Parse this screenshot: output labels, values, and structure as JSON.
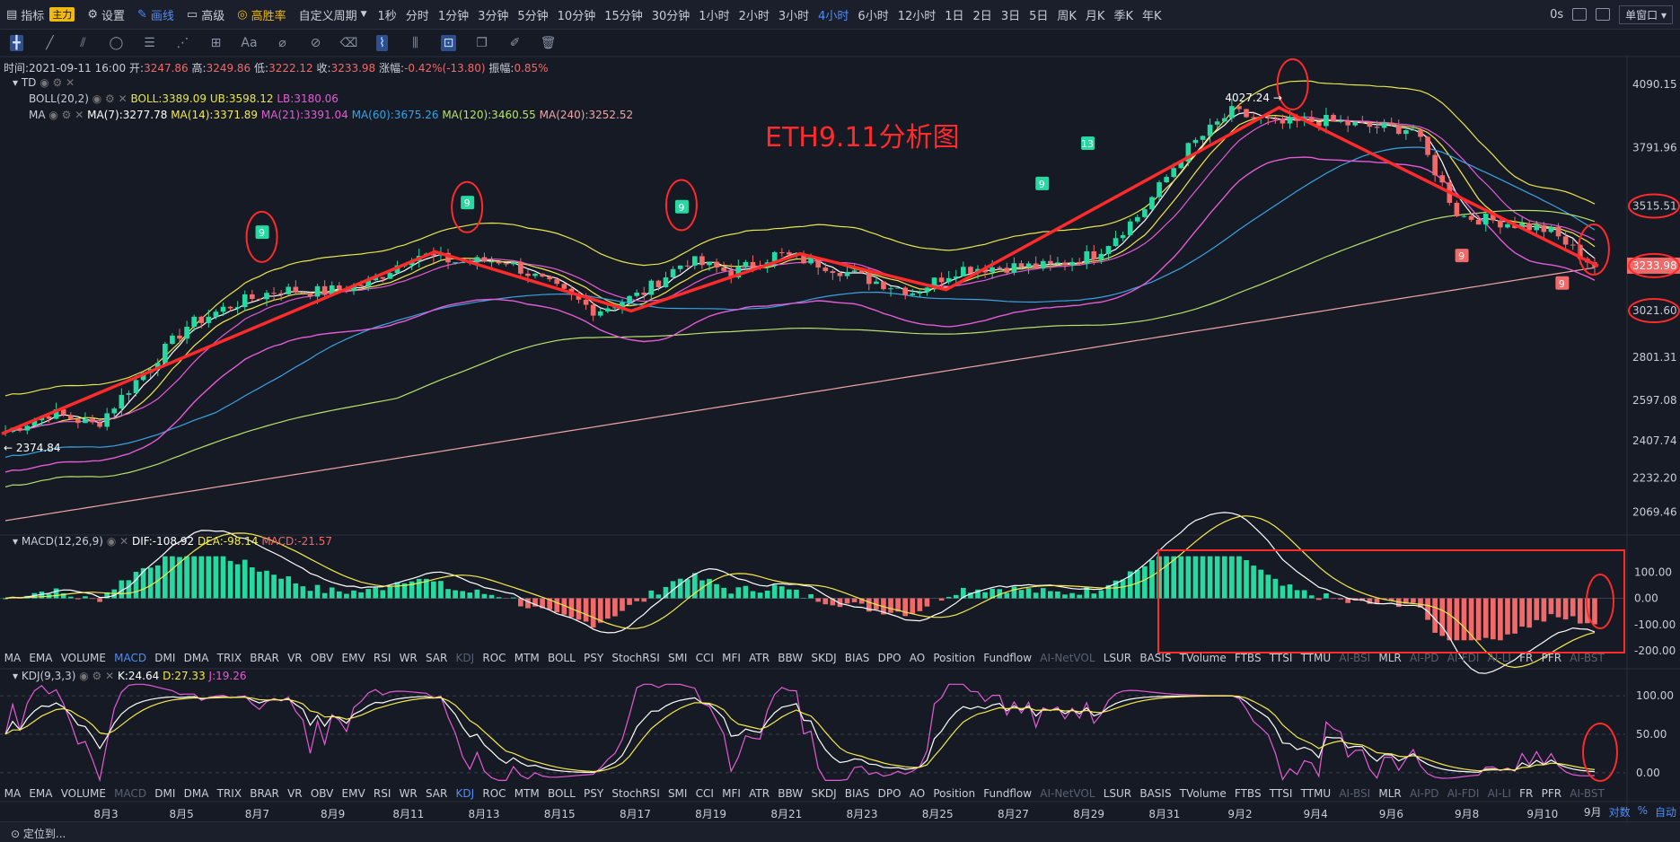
{
  "topbar": {
    "indicator_label": "指标",
    "main_badge": "主力",
    "settings_label": "设置",
    "draw_label": "画线",
    "advanced_label": "高级",
    "winrate_label": "高胜率",
    "custom_period_label": "自定义周期",
    "periods": [
      "1秒",
      "分时",
      "1分钟",
      "3分钟",
      "5分钟",
      "10分钟",
      "15分钟",
      "30分钟",
      "1小时",
      "2小时",
      "3小时",
      "4小时",
      "6小时",
      "12小时",
      "1日",
      "2日",
      "3日",
      "5日",
      "周K",
      "月K",
      "季K",
      "年K"
    ],
    "active_period": "4小时",
    "timer": "0s",
    "window_mode": "单窗口"
  },
  "toolbar": {
    "text_tool": "Aa"
  },
  "info_line": {
    "time": "时间:2021-09-11 16:00",
    "open_label": "开:",
    "open": "3247.86",
    "high_label": "高:",
    "high": "3249.86",
    "low_label": "低:",
    "low": "3222.12",
    "close_label": "收:",
    "close": "3233.98",
    "change_label": "涨幅:",
    "change": "-0.42%(-13.80)",
    "amp_label": "振幅:",
    "amp": "0.85%"
  },
  "legends": {
    "td": "TD",
    "boll_name": "BOLL(20,2)",
    "boll_mid": "BOLL:3389.09",
    "boll_ub": "UB:3598.12",
    "boll_lb": "LB:3180.06",
    "ma_name": "MA",
    "ma7": "MA(7):3277.78",
    "ma14": "MA(14):3371.89",
    "ma21": "MA(21):3391.04",
    "ma60": "MA(60):3675.26",
    "ma120": "MA(120):3460.55",
    "ma240": "MA(240):3252.52",
    "macd_name": "MACD(12,26,9)",
    "dif": "DIF:-108.92",
    "dea": "DEA:-98.14",
    "macd": "MACD:-21.57",
    "kdj_name": "KDJ(9,3,3)",
    "k": "K:24.64",
    "d": "D:27.33",
    "j": "J:19.26"
  },
  "annotation_title": "ETH9.11分析图",
  "indicator_tabs": [
    "MA",
    "EMA",
    "VOLUME",
    "MACD",
    "DMI",
    "DMA",
    "TRIX",
    "BRAR",
    "VR",
    "OBV",
    "EMV",
    "RSI",
    "WR",
    "SAR",
    "KDJ",
    "ROC",
    "MTM",
    "BOLL",
    "PSY",
    "StochRSI",
    "SMI",
    "CCI",
    "MFI",
    "ATR",
    "BBW",
    "SKDJ",
    "BIAS",
    "DPO",
    "AO",
    "Position",
    "Fundflow",
    "AI-NetVOL",
    "LSUR",
    "BASIS",
    "TVolume",
    "FTBS",
    "TTSI",
    "TTMU",
    "AI-BSI",
    "MLR",
    "AI-PD",
    "AI-FDI",
    "AI-LI",
    "FR",
    "PFR",
    "AI-BST"
  ],
  "indicator_tabs_dim": [
    "KDJ",
    "AI-NetVOL",
    "AI-BSI",
    "AI-PD",
    "AI-FDI",
    "AI-LI",
    "AI-BST"
  ],
  "indicator_tabs2_active": "KDJ",
  "indicator_tabs2_dim": [
    "MACD",
    "AI-NetVOL",
    "AI-BSI",
    "AI-PD",
    "AI-FDI",
    "AI-LI",
    "AI-BST"
  ],
  "bottom": {
    "locate_label": "定位到...",
    "right_labels": [
      "9月",
      "对数",
      "%",
      "自动"
    ]
  },
  "colors": {
    "up": "#26d9a0",
    "down": "#f06a6a",
    "ma7": "#ffffff",
    "ma14": "#f5e94a",
    "ma21": "#e45bd4",
    "ma60": "#3aa3e3",
    "ma120": "#b7e36a",
    "ma240": "#f0a5a5",
    "boll": "#e8e64c",
    "annotation": "#ff2a2a"
  },
  "chart_data": [
    {
      "type": "candlestick",
      "title": "",
      "yscale": "linear",
      "ylim": [
        1975,
        4200
      ],
      "ytick_labels": [
        "4090.15",
        "3791.96",
        "3515.51",
        "3233.98",
        "3021.60",
        "2801.31",
        "2597.08",
        "2407.74",
        "2232.20",
        "2069.46"
      ],
      "ytick_values": [
        4090.15,
        3791.96,
        3515.51,
        3233.98,
        3021.6,
        2801.31,
        2597.08,
        2407.74,
        2232.2,
        2069.46
      ],
      "highlighted_ticks": [
        "3515.51",
        "3233.98",
        "3021.60"
      ],
      "x_labels": [
        "8月3",
        "8月5",
        "8月7",
        "8月9",
        "8月11",
        "8月13",
        "8月15",
        "8月17",
        "8月19",
        "8月21",
        "8月23",
        "8月25",
        "8月27",
        "8月29",
        "8月31",
        "9月2",
        "9月4",
        "9月6",
        "9月8",
        "9月10"
      ],
      "price_anchors": [
        {
          "day": 0,
          "price": 2450
        },
        {
          "day": 1,
          "price": 2540
        },
        {
          "day": 2,
          "price": 2480
        },
        {
          "day": 3,
          "price": 2720
        },
        {
          "day": 4,
          "price": 2950
        },
        {
          "day": 5,
          "price": 3050
        },
        {
          "day": 6,
          "price": 3120
        },
        {
          "day": 7,
          "price": 3110
        },
        {
          "day": 8,
          "price": 3150
        },
        {
          "day": 9,
          "price": 3290
        },
        {
          "day": 10,
          "price": 3250
        },
        {
          "day": 11,
          "price": 3260
        },
        {
          "day": 12,
          "price": 3140
        },
        {
          "day": 13,
          "price": 3020
        },
        {
          "day": 14,
          "price": 3100
        },
        {
          "day": 15,
          "price": 3260
        },
        {
          "day": 16,
          "price": 3200
        },
        {
          "day": 17,
          "price": 3290
        },
        {
          "day": 18,
          "price": 3240
        },
        {
          "day": 19,
          "price": 3170
        },
        {
          "day": 20,
          "price": 3110
        },
        {
          "day": 21,
          "price": 3220
        },
        {
          "day": 22,
          "price": 3230
        },
        {
          "day": 23,
          "price": 3230
        },
        {
          "day": 24,
          "price": 3290
        },
        {
          "day": 25,
          "price": 3480
        },
        {
          "day": 26,
          "price": 3780
        },
        {
          "day": 27,
          "price": 3960
        },
        {
          "day": 28,
          "price": 3900
        },
        {
          "day": 29,
          "price": 3920
        },
        {
          "day": 30,
          "price": 3890
        },
        {
          "day": 31,
          "price": 3880
        },
        {
          "day": 32,
          "price": 3470
        },
        {
          "day": 33,
          "price": 3440
        },
        {
          "day": 34,
          "price": 3400
        },
        {
          "day": 35,
          "price": 3232
        }
      ],
      "annotations": {
        "high_label": "4027.24",
        "low_label": "2374.84",
        "td_labels": [
          "9",
          "9",
          "9",
          "9",
          "13",
          "9",
          "9"
        ]
      }
    },
    {
      "type": "bar",
      "title": "",
      "ylim": [
        -200,
        200
      ],
      "ytick_labels": [
        "100.00",
        "0.00",
        "-100.00",
        "-200.00"
      ],
      "ytick_values": [
        100,
        0,
        -100,
        -200
      ]
    },
    {
      "type": "line",
      "title": "",
      "ylim": [
        -20,
        120
      ],
      "ytick_labels": [
        "100.00",
        "50.00",
        "0.00"
      ],
      "ytick_values": [
        100,
        50,
        0
      ]
    }
  ]
}
